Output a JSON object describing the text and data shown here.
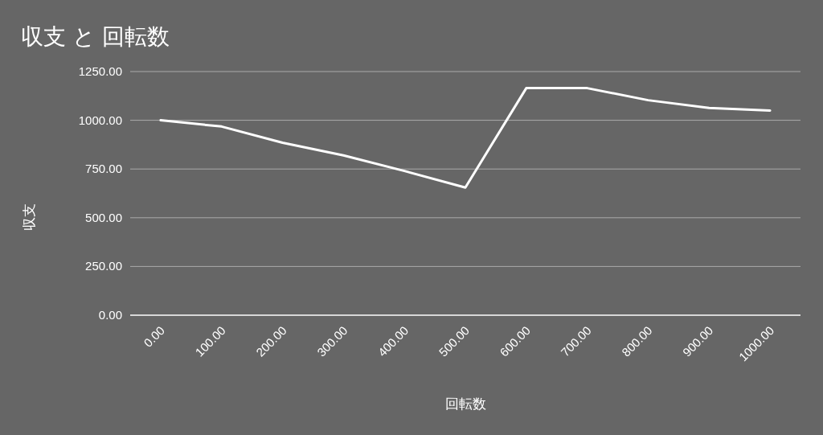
{
  "chart_data": {
    "type": "line",
    "title": "収支 と 回転数",
    "xlabel": "回転数",
    "ylabel": "収支",
    "categories": [
      "0.00",
      "100.00",
      "200.00",
      "300.00",
      "400.00",
      "500.00",
      "600.00",
      "700.00",
      "800.00",
      "900.00",
      "1000.00"
    ],
    "series": [
      {
        "color": "#ffffff",
        "values": [
          1000,
          968,
          885,
          820,
          740,
          655,
          1165,
          1165,
          1103,
          1063,
          1050
        ]
      }
    ],
    "ylim": [
      0,
      1250
    ],
    "yticks": [
      {
        "value": 0,
        "label": "0.00"
      },
      {
        "value": 250,
        "label": "250.00"
      },
      {
        "value": 500,
        "label": "500.00"
      },
      {
        "value": 750,
        "label": "750.00"
      },
      {
        "value": 1000,
        "label": "1000.00"
      },
      {
        "value": 1250,
        "label": "1250.00"
      }
    ],
    "grid": "y",
    "marker": "none",
    "line_style": "solid"
  }
}
